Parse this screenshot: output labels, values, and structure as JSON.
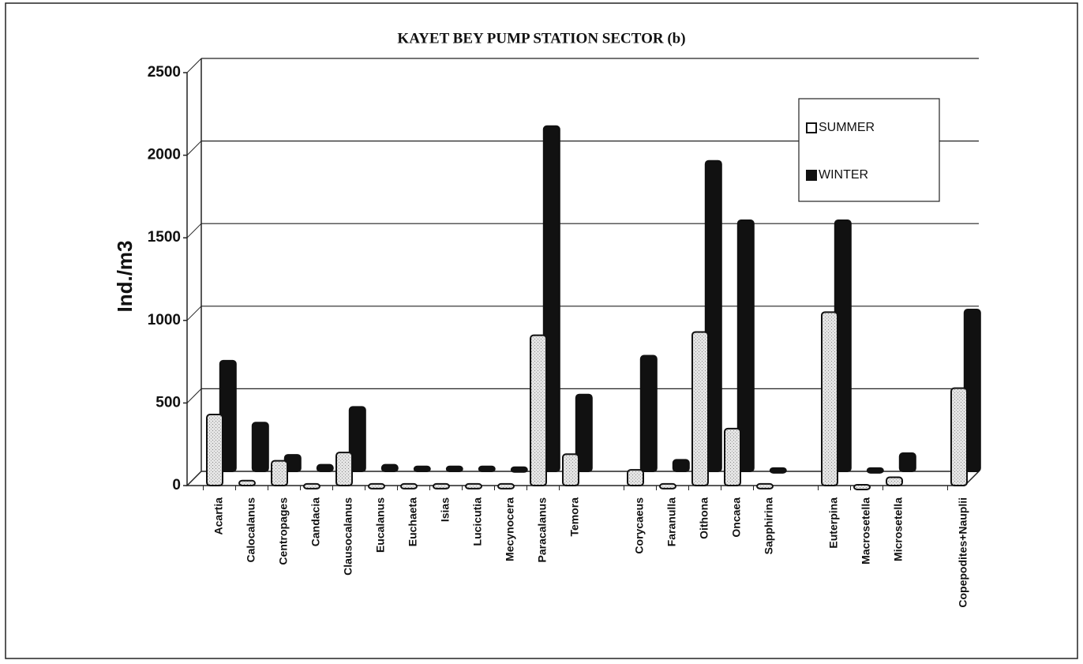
{
  "chart_data": {
    "type": "bar",
    "title": "KAYET BEY PUMP STATION SECTOR (b)",
    "y_label": "Ind./m3",
    "categories": [
      "Acartia",
      "Calocalanus",
      "Centropages",
      "Candacia",
      "Clausocalanus",
      "Eucalanus",
      "Euchaeta",
      "Isias",
      "Lucicutia",
      "Mecynocera",
      "Paracalanus",
      "Temora",
      null,
      "Corycaeus",
      "Faranulla",
      "Oithona",
      "Oncaea",
      "Sapphirina",
      null,
      "Euterpina",
      "Macrosetella",
      "Microsetella",
      null,
      "Copepodites+Nauplii"
    ],
    "series": [
      {
        "name": "SUMMER",
        "color": "#d9d9d9",
        "values": [
          430,
          30,
          150,
          10,
          200,
          10,
          10,
          10,
          10,
          10,
          910,
          190,
          null,
          95,
          10,
          930,
          345,
          10,
          null,
          1050,
          5,
          50,
          null,
          590
        ]
      },
      {
        "name": "WINTER",
        "color": "#111111",
        "values": [
          670,
          295,
          100,
          40,
          390,
          40,
          30,
          30,
          30,
          25,
          2090,
          465,
          null,
          700,
          70,
          1880,
          1520,
          20,
          null,
          1520,
          20,
          110,
          null,
          980
        ]
      }
    ],
    "ylim": [
      0,
      2500
    ],
    "yticks": [
      0,
      500,
      1000,
      1500,
      2000,
      2500
    ],
    "grid": true,
    "legend": "upper right"
  }
}
